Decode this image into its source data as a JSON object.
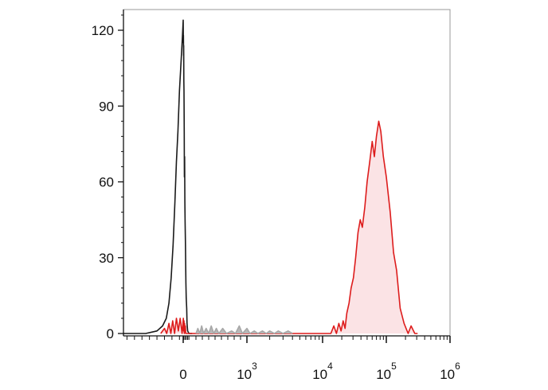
{
  "chart_data": {
    "type": "area",
    "x_scale": "biexponential",
    "grid": false,
    "ylim": [
      0,
      130
    ],
    "y_ticks": [
      {
        "value": 0,
        "label": "0"
      },
      {
        "value": 30,
        "label": "30"
      },
      {
        "value": 60,
        "label": "60"
      },
      {
        "value": 90,
        "label": "90"
      },
      {
        "value": 120,
        "label": "120"
      }
    ],
    "x_ticks": [
      {
        "value": 0,
        "base": "0",
        "exp": ""
      },
      {
        "value": 1000,
        "base": "10",
        "exp": "3"
      },
      {
        "value": 10000,
        "base": "10",
        "exp": "4"
      },
      {
        "value": 100000,
        "base": "10",
        "exp": "5"
      },
      {
        "value": 1000000,
        "base": "10",
        "exp": "6"
      }
    ],
    "series": [
      {
        "color": "#1a1a1a",
        "fill": "none",
        "points": [
          [
            -160,
            0
          ],
          [
            -100,
            0
          ],
          [
            -70,
            1
          ],
          [
            -55,
            3
          ],
          [
            -45,
            6
          ],
          [
            -38,
            12
          ],
          [
            -32,
            22
          ],
          [
            -27,
            35
          ],
          [
            -22,
            52
          ],
          [
            -18,
            68
          ],
          [
            -14,
            80
          ],
          [
            -10,
            96
          ],
          [
            -7,
            104
          ],
          [
            -4,
            112
          ],
          [
            -2,
            118
          ],
          [
            0,
            124
          ],
          [
            2,
            115
          ],
          [
            4,
            118
          ],
          [
            6,
            110
          ],
          [
            8,
            114
          ],
          [
            10,
            100
          ],
          [
            13,
            96
          ],
          [
            16,
            80
          ],
          [
            19,
            62
          ],
          [
            22,
            70
          ],
          [
            26,
            52
          ],
          [
            30,
            44
          ],
          [
            35,
            36
          ],
          [
            42,
            20
          ],
          [
            48,
            14
          ],
          [
            55,
            10
          ],
          [
            60,
            4
          ],
          [
            70,
            1
          ],
          [
            90,
            0
          ],
          [
            140,
            0
          ]
        ]
      },
      {
        "color": "#dd1c1c",
        "fill": "#fbe3e5",
        "points": [
          [
            -60,
            0
          ],
          [
            -50,
            2
          ],
          [
            -44,
            0
          ],
          [
            -38,
            4
          ],
          [
            -33,
            0
          ],
          [
            -28,
            5
          ],
          [
            -23,
            0
          ],
          [
            -18,
            6
          ],
          [
            -13,
            1
          ],
          [
            -8,
            6
          ],
          [
            -3,
            0
          ],
          [
            2,
            6
          ],
          [
            7,
            1
          ],
          [
            12,
            5
          ],
          [
            17,
            0
          ],
          [
            22,
            4
          ],
          [
            28,
            1
          ],
          [
            34,
            3
          ],
          [
            40,
            0
          ],
          [
            13500,
            0
          ],
          [
            15000,
            3
          ],
          [
            16500,
            0
          ],
          [
            18000,
            4
          ],
          [
            19500,
            1
          ],
          [
            21000,
            5
          ],
          [
            22500,
            2
          ],
          [
            24000,
            8
          ],
          [
            26000,
            12
          ],
          [
            28000,
            18
          ],
          [
            30500,
            22
          ],
          [
            33000,
            30
          ],
          [
            36000,
            40
          ],
          [
            39000,
            45
          ],
          [
            42000,
            42
          ],
          [
            46000,
            50
          ],
          [
            50000,
            60
          ],
          [
            55000,
            68
          ],
          [
            60000,
            76
          ],
          [
            65000,
            70
          ],
          [
            70000,
            78
          ],
          [
            76000,
            84
          ],
          [
            82000,
            80
          ],
          [
            90000,
            70
          ],
          [
            100000,
            62
          ],
          [
            115000,
            48
          ],
          [
            130000,
            32
          ],
          [
            145000,
            25
          ],
          [
            165000,
            10
          ],
          [
            190000,
            4
          ],
          [
            220000,
            0
          ],
          [
            245000,
            3
          ],
          [
            280000,
            0
          ],
          [
            310000,
            0
          ]
        ]
      },
      {
        "color": "#a8a8a8",
        "fill": "#b8b8b8",
        "points": [
          [
            200,
            0
          ],
          [
            230,
            2
          ],
          [
            260,
            0
          ],
          [
            290,
            3
          ],
          [
            320,
            0
          ],
          [
            360,
            2
          ],
          [
            400,
            0
          ],
          [
            440,
            3
          ],
          [
            480,
            0
          ],
          [
            520,
            2
          ],
          [
            560,
            0
          ],
          [
            620,
            2
          ],
          [
            680,
            0
          ],
          [
            760,
            1
          ],
          [
            820,
            0
          ],
          [
            880,
            3
          ],
          [
            930,
            0
          ],
          [
            1000,
            2
          ],
          [
            1100,
            0
          ],
          [
            1250,
            1
          ],
          [
            1400,
            0
          ],
          [
            1600,
            1
          ],
          [
            1800,
            0
          ],
          [
            2000,
            1
          ],
          [
            2300,
            0
          ],
          [
            2600,
            1
          ],
          [
            3000,
            0
          ],
          [
            3500,
            1
          ],
          [
            4000,
            0
          ]
        ]
      }
    ]
  }
}
